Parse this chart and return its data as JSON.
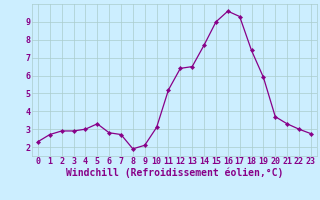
{
  "x": [
    0,
    1,
    2,
    3,
    4,
    5,
    6,
    7,
    8,
    9,
    10,
    11,
    12,
    13,
    14,
    15,
    16,
    17,
    18,
    19,
    20,
    21,
    22,
    23
  ],
  "y": [
    2.3,
    2.7,
    2.9,
    2.9,
    3.0,
    3.3,
    2.8,
    2.7,
    1.9,
    2.1,
    3.1,
    5.2,
    6.4,
    6.5,
    7.7,
    9.0,
    9.6,
    9.3,
    7.4,
    5.9,
    3.7,
    3.3,
    3.0,
    2.75
  ],
  "line_color": "#880088",
  "marker": "D",
  "marker_size": 2.2,
  "bg_color": "#cceeff",
  "grid_color": "#aacccc",
  "xlabel": "Windchill (Refroidissement éolien,°C)",
  "ylim": [
    1.5,
    10.0
  ],
  "yticks": [
    2,
    3,
    4,
    5,
    6,
    7,
    8,
    9
  ],
  "xticks": [
    0,
    1,
    2,
    3,
    4,
    5,
    6,
    7,
    8,
    9,
    10,
    11,
    12,
    13,
    14,
    15,
    16,
    17,
    18,
    19,
    20,
    21,
    22,
    23
  ],
  "font_color": "#880088",
  "tick_labelsize": 6.0,
  "xlabel_fontsize": 7.0
}
